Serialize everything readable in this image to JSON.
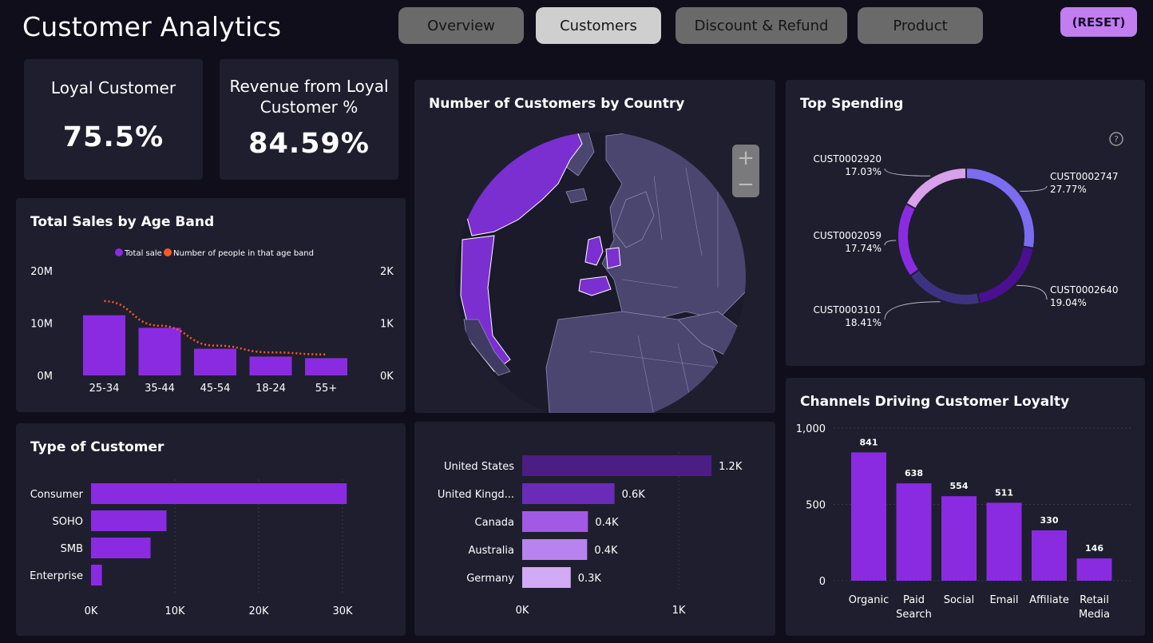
{
  "header": {
    "title": "Customer Analytics",
    "tabs": [
      "Overview",
      "Customers",
      "Discount & Refund",
      "Product"
    ],
    "active_tab": "Customers",
    "reset_label": "(RESET)"
  },
  "kpis": [
    {
      "label": "Loyal Customer",
      "value": "75.5%"
    },
    {
      "label_line1": "Revenue from Loyal",
      "label_line2": "Customer %",
      "value": "84.59%"
    }
  ],
  "map": {
    "title": "Number of Customers by Country",
    "zoom_in": "+",
    "zoom_out": "−"
  },
  "colors": {
    "purple": "#8a2be2",
    "orange": "#ff5a1f",
    "card": "#1f1e2e",
    "background": "#0f0e1a"
  },
  "chart_data": [
    {
      "id": "age_band",
      "type": "bar",
      "title": "Total Sales by Age Band",
      "categories": [
        "25-34",
        "35-44",
        "45-54",
        "18-24",
        "55+"
      ],
      "series": [
        {
          "name": "Total sale",
          "type": "bar",
          "axis": "left",
          "values": [
            11500000,
            9100000,
            5100000,
            3600000,
            3300000
          ]
        },
        {
          "name": "Number of people in that age band",
          "type": "line",
          "axis": "right",
          "values": [
            1420,
            950,
            570,
            440,
            400
          ]
        }
      ],
      "y_left": {
        "ticks": [
          "0M",
          "10M",
          "20M"
        ],
        "range": [
          0,
          20000000
        ]
      },
      "y_right": {
        "ticks": [
          "0K",
          "1K",
          "2K"
        ],
        "range": [
          0,
          2000
        ]
      },
      "legend": "top-center"
    },
    {
      "id": "customer_type",
      "type": "bar",
      "orientation": "horizontal",
      "title": "Type of Customer",
      "categories": [
        "Consumer",
        "SOHO",
        "SMB",
        "Enterprise"
      ],
      "values": [
        30500,
        9000,
        7100,
        1300
      ],
      "x_ticks": [
        "0K",
        "10K",
        "20K",
        "30K"
      ],
      "xlim": [
        0,
        30000
      ]
    },
    {
      "id": "country_bars",
      "type": "bar",
      "orientation": "horizontal",
      "categories": [
        "United States",
        "United Kingd...",
        "Canada",
        "Australia",
        "Germany"
      ],
      "values": [
        1210,
        590,
        420,
        415,
        310
      ],
      "data_labels": [
        "1.2K",
        "0.6K",
        "0.4K",
        "0.4K",
        "0.3K"
      ],
      "x_ticks": [
        "0K",
        "1K"
      ],
      "xlim": [
        0,
        1000
      ],
      "colors": [
        "#4b1d85",
        "#6a2bb8",
        "#a25ae6",
        "#b883ee",
        "#d2aaf5"
      ]
    },
    {
      "id": "top_spending",
      "type": "pie",
      "title": "Top Spending",
      "labels": [
        "CUST0002747",
        "CUST0002640",
        "CUST0003101",
        "CUST0002059",
        "CUST0002920"
      ],
      "values": [
        27.77,
        19.04,
        18.41,
        17.74,
        17.03
      ],
      "pct_labels": [
        "27.77%",
        "19.04%",
        "18.41%",
        "17.74%",
        "17.03%"
      ],
      "colors": [
        "#7b6cf0",
        "#4b0f91",
        "#3d3282",
        "#8a2be2",
        "#d9a0ec"
      ]
    },
    {
      "id": "channels",
      "type": "bar",
      "title": "Channels Driving Customer Loyalty",
      "categories": [
        [
          "Organic"
        ],
        [
          "Paid",
          "Search"
        ],
        [
          "Social"
        ],
        [
          "Email"
        ],
        [
          "Affiliate"
        ],
        [
          "Retail",
          "Media"
        ]
      ],
      "values": [
        841,
        638,
        554,
        511,
        330,
        146
      ],
      "data_labels": [
        "841",
        "638",
        "554",
        "511",
        "330",
        "146"
      ],
      "y_ticks": [
        "0",
        "500",
        "1,000"
      ],
      "ylim": [
        0,
        1000
      ]
    }
  ]
}
